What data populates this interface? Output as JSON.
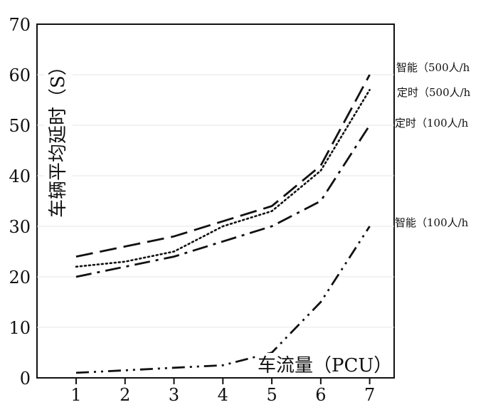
{
  "chart_data": {
    "type": "line",
    "ylabel": "车辆平均延时（S）",
    "xlabel": "车流量（PCU）",
    "x": [
      1,
      2,
      3,
      4,
      5,
      6,
      7
    ],
    "xticks": [
      "1",
      "2",
      "3",
      "4",
      "5",
      "6",
      "7"
    ],
    "yticks": [
      "0",
      "10",
      "20",
      "30",
      "40",
      "50",
      "60",
      "70"
    ],
    "xlim": [
      0.2,
      7.5
    ],
    "ylim": [
      0,
      70
    ],
    "grid": "horizontal",
    "series": [
      {
        "name": "智能（500人/h",
        "style": "dash",
        "values": [
          24,
          26,
          28,
          31,
          34,
          42,
          60
        ]
      },
      {
        "name": "定时（500人/h",
        "style": "dot",
        "values": [
          22,
          23,
          25,
          30,
          33,
          41,
          57
        ]
      },
      {
        "name": "定时（100人/h",
        "style": "dashdot",
        "values": [
          20,
          22,
          24,
          27,
          30,
          35,
          50
        ]
      },
      {
        "name": "智能（100人/h",
        "style": "dashdotdot",
        "values": [
          1,
          1.5,
          2,
          2.5,
          5,
          15,
          30
        ]
      }
    ]
  }
}
